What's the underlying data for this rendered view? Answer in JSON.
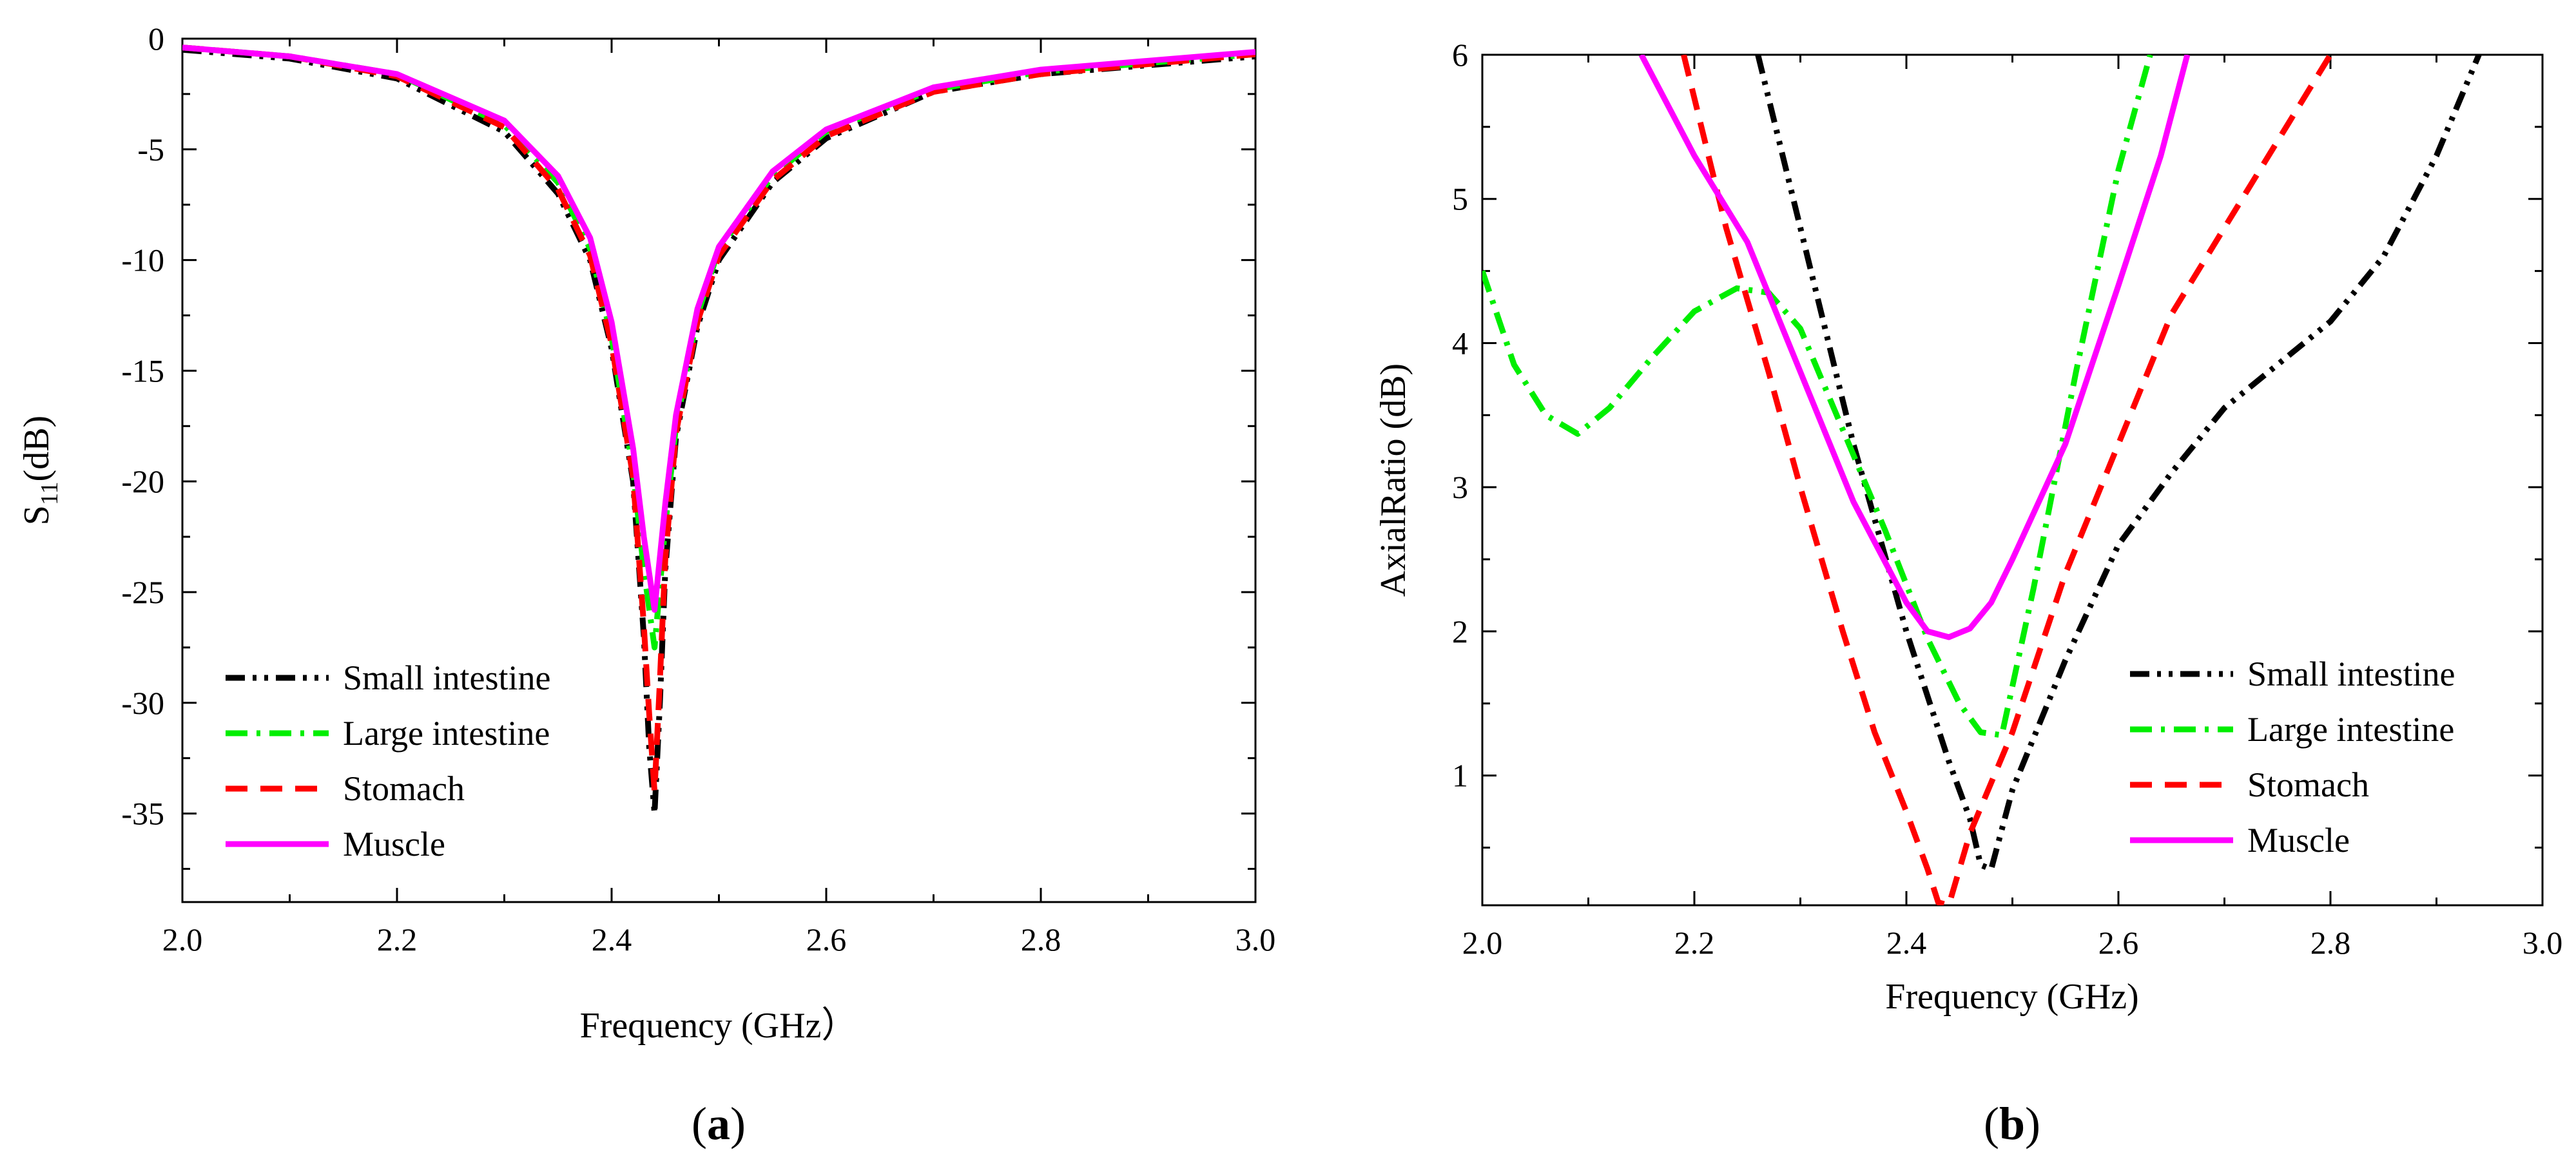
{
  "chart_data": [
    {
      "type": "line",
      "panel_label": "a",
      "title": "",
      "xlabel": "Frequency (GHz）",
      "ylabel": "S11(dB)",
      "ylabel_parts": {
        "base": "S",
        "sub": "11",
        "unit": "(dB)"
      },
      "xlim": [
        2.0,
        3.0
      ],
      "ylim": [
        -39,
        0
      ],
      "x_ticks": [
        "2.0",
        "2.2",
        "2.4",
        "2.6",
        "2.8",
        "3.0"
      ],
      "y_ticks": [
        "0",
        "-5",
        "-10",
        "-15",
        "-20",
        "-25",
        "-30",
        "-35"
      ],
      "legend_position": "bottom-left",
      "grid": false,
      "series": [
        {
          "name": "Small intestine",
          "color": "#000000",
          "style": "dash-dot-dot",
          "x": [
            2.0,
            2.1,
            2.2,
            2.3,
            2.35,
            2.38,
            2.4,
            2.42,
            2.43,
            2.435,
            2.44,
            2.445,
            2.45,
            2.46,
            2.48,
            2.5,
            2.55,
            2.6,
            2.7,
            2.8,
            3.0
          ],
          "y": [
            -0.5,
            -0.9,
            -1.8,
            -4.2,
            -7.0,
            -10.0,
            -14.0,
            -20.0,
            -27.0,
            -32.0,
            -35.0,
            -30.0,
            -24.0,
            -18.0,
            -13.0,
            -10.0,
            -6.5,
            -4.5,
            -2.4,
            -1.6,
            -0.8
          ]
        },
        {
          "name": "Large intestine",
          "color": "#00ee00",
          "style": "dash-dot",
          "x": [
            2.0,
            2.1,
            2.2,
            2.3,
            2.35,
            2.38,
            2.4,
            2.42,
            2.43,
            2.44,
            2.45,
            2.46,
            2.48,
            2.5,
            2.55,
            2.6,
            2.7,
            2.8,
            3.0
          ],
          "y": [
            -0.4,
            -0.8,
            -1.6,
            -3.9,
            -6.5,
            -9.5,
            -13.5,
            -19.5,
            -24.0,
            -27.5,
            -22.0,
            -17.5,
            -12.5,
            -9.5,
            -6.2,
            -4.2,
            -2.3,
            -1.5,
            -0.7
          ]
        },
        {
          "name": "Stomach",
          "color": "#ff0000",
          "style": "dash",
          "x": [
            2.0,
            2.1,
            2.2,
            2.3,
            2.35,
            2.38,
            2.4,
            2.42,
            2.43,
            2.435,
            2.44,
            2.445,
            2.45,
            2.46,
            2.48,
            2.5,
            2.55,
            2.6,
            2.7,
            2.8,
            3.0
          ],
          "y": [
            -0.4,
            -0.8,
            -1.7,
            -4.0,
            -6.8,
            -9.8,
            -13.8,
            -19.8,
            -26.5,
            -30.5,
            -34.0,
            -29.0,
            -23.5,
            -17.8,
            -12.8,
            -9.8,
            -6.4,
            -4.4,
            -2.4,
            -1.6,
            -0.7
          ]
        },
        {
          "name": "Muscle",
          "color": "#ff00ff",
          "style": "solid",
          "x": [
            2.0,
            2.1,
            2.2,
            2.3,
            2.35,
            2.38,
            2.4,
            2.42,
            2.43,
            2.44,
            2.45,
            2.46,
            2.48,
            2.5,
            2.55,
            2.6,
            2.7,
            2.8,
            3.0
          ],
          "y": [
            -0.4,
            -0.8,
            -1.6,
            -3.7,
            -6.2,
            -9.0,
            -12.8,
            -18.5,
            -22.5,
            -25.8,
            -21.0,
            -17.0,
            -12.2,
            -9.4,
            -6.0,
            -4.1,
            -2.2,
            -1.4,
            -0.6
          ]
        }
      ]
    },
    {
      "type": "line",
      "panel_label": "b",
      "title": "",
      "xlabel": "Frequency (GHz)",
      "ylabel": "AxialRatio (dB)",
      "xlim": [
        2.0,
        3.0
      ],
      "ylim": [
        0.1,
        6.0
      ],
      "x_ticks": [
        "2.0",
        "2.2",
        "2.4",
        "2.6",
        "2.8",
        "3.0"
      ],
      "y_ticks": [
        "1",
        "2",
        "3",
        "4",
        "5",
        "6"
      ],
      "legend_position": "bottom-right",
      "grid": false,
      "series": [
        {
          "name": "Small intestine",
          "color": "#000000",
          "style": "dash-dot-dot",
          "x": [
            2.26,
            2.3,
            2.35,
            2.4,
            2.44,
            2.46,
            2.47,
            2.48,
            2.5,
            2.55,
            2.6,
            2.65,
            2.7,
            2.75,
            2.8,
            2.85,
            2.9,
            2.94
          ],
          "y": [
            6.0,
            4.8,
            3.3,
            2.0,
            1.1,
            0.7,
            0.38,
            0.35,
            0.9,
            1.8,
            2.6,
            3.1,
            3.55,
            3.85,
            4.15,
            4.6,
            5.3,
            6.0
          ]
        },
        {
          "name": "Large intestine",
          "color": "#00ee00",
          "style": "dash-dot",
          "x": [
            2.0,
            2.03,
            2.06,
            2.09,
            2.12,
            2.16,
            2.2,
            2.24,
            2.27,
            2.3,
            2.34,
            2.38,
            2.42,
            2.45,
            2.47,
            2.49,
            2.52,
            2.56,
            2.6,
            2.63
          ],
          "y": [
            4.5,
            3.85,
            3.5,
            3.37,
            3.55,
            3.9,
            4.22,
            4.38,
            4.35,
            4.1,
            3.4,
            2.7,
            1.95,
            1.5,
            1.3,
            1.28,
            2.3,
            3.8,
            5.2,
            6.0
          ]
        },
        {
          "name": "Stomach",
          "color": "#ff0000",
          "style": "dash",
          "x": [
            2.19,
            2.23,
            2.27,
            2.3,
            2.34,
            2.37,
            2.4,
            2.42,
            2.43,
            2.44,
            2.46,
            2.5,
            2.55,
            2.6,
            2.65,
            2.7,
            2.75,
            2.8
          ],
          "y": [
            6.0,
            4.8,
            3.8,
            3.0,
            2.0,
            1.3,
            0.75,
            0.35,
            0.12,
            0.1,
            0.6,
            1.3,
            2.4,
            3.3,
            4.2,
            4.8,
            5.4,
            6.0
          ]
        },
        {
          "name": "Muscle",
          "color": "#ff00ff",
          "style": "solid",
          "x": [
            2.15,
            2.2,
            2.25,
            2.3,
            2.35,
            2.4,
            2.42,
            2.44,
            2.46,
            2.48,
            2.5,
            2.55,
            2.6,
            2.64,
            2.665
          ],
          "y": [
            6.0,
            5.3,
            4.7,
            3.8,
            2.9,
            2.2,
            2.0,
            1.96,
            2.02,
            2.2,
            2.5,
            3.3,
            4.4,
            5.3,
            6.0
          ]
        }
      ]
    }
  ]
}
